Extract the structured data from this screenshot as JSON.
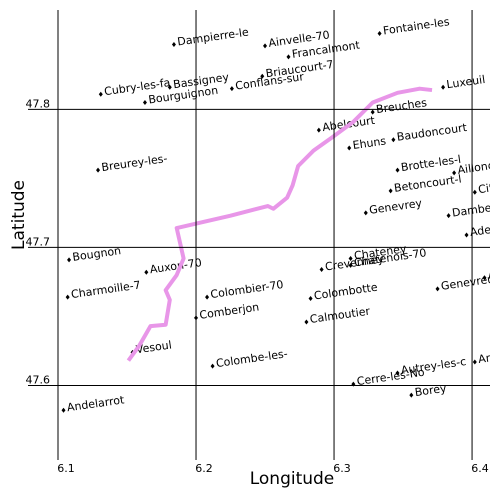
{
  "chart_data": {
    "type": "map",
    "x_label": "Longitude",
    "y_label": "Latitude",
    "xlim": [
      6.1,
      6.413
    ],
    "ylim": [
      47.546,
      47.872
    ],
    "xticks": [
      6.1,
      6.2,
      6.3,
      6.4
    ],
    "yticks": [
      47.6,
      47.7,
      47.8
    ],
    "grid": true,
    "series": [
      {
        "type": "scatter",
        "color": "#000000",
        "labels": [
          "Dampierre-le",
          "Ainvelle-70",
          "Francalmont",
          "Fontaine-les",
          "Cubry-les-fa",
          "Bassigney",
          "Bourguignon",
          "Conflans-sur",
          "Briaucourt-7",
          "Luxeuil",
          "Abelcourt",
          "Breuches",
          "Ehuns",
          "Baudoncourt",
          "Breurey-les-",
          "Brotte-les-l",
          "Ailloncour",
          "Betoncourt-l",
          "Cite",
          "Genevrey",
          "Dambenoi",
          "Adela",
          "Bougnon",
          "Auxon-70",
          "Chateney",
          "Crevenney",
          "Chatenois-70",
          "A",
          "Charmoille-7",
          "Colombier-70",
          "Colombotte",
          "Genevreu",
          "Comberjon",
          "Calmoutier",
          "Vesoul",
          "Colombe-les-",
          "Cerre-les-No",
          "Autrey-les-c",
          "Arpe",
          "Borey",
          "Andelarrot"
        ],
        "x": [
          6.184,
          6.25,
          6.267,
          6.333,
          6.131,
          6.181,
          6.163,
          6.226,
          6.248,
          6.379,
          6.289,
          6.328,
          6.311,
          6.343,
          6.129,
          6.346,
          6.387,
          6.341,
          6.402,
          6.323,
          6.383,
          6.396,
          6.108,
          6.164,
          6.312,
          6.291,
          6.312,
          6.409,
          6.107,
          6.208,
          6.283,
          6.375,
          6.2,
          6.28,
          6.154,
          6.212,
          6.314,
          6.346,
          6.402,
          6.356,
          6.104
        ],
        "values": [
          47.847,
          47.846,
          47.838,
          47.855,
          47.811,
          47.816,
          47.805,
          47.815,
          47.824,
          47.816,
          47.785,
          47.798,
          47.772,
          47.778,
          47.756,
          47.756,
          47.754,
          47.741,
          47.74,
          47.725,
          47.723,
          47.709,
          47.691,
          47.682,
          47.692,
          47.684,
          47.687,
          47.678,
          47.664,
          47.664,
          47.663,
          47.67,
          47.649,
          47.646,
          47.624,
          47.614,
          47.601,
          47.609,
          47.617,
          47.593,
          47.582
        ]
      },
      {
        "type": "line",
        "color": "#e896e8",
        "x": [
          6.151,
          6.159,
          6.167,
          6.178,
          6.181,
          6.178,
          6.186,
          6.191,
          6.186,
          6.225,
          6.252,
          6.256,
          6.266,
          6.27,
          6.274,
          6.285,
          6.299,
          6.314,
          6.328,
          6.346,
          6.362,
          6.371
        ],
        "values": [
          47.618,
          47.629,
          47.643,
          47.644,
          47.662,
          47.669,
          47.68,
          47.692,
          47.714,
          47.723,
          47.73,
          47.728,
          47.736,
          47.745,
          47.759,
          47.77,
          47.78,
          47.791,
          47.805,
          47.812,
          47.815,
          47.814
        ]
      }
    ]
  }
}
